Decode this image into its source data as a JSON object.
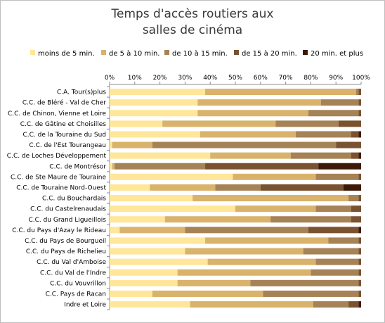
{
  "chart_data": {
    "type": "bar",
    "orientation": "horizontal",
    "stacked": true,
    "percent": true,
    "title": "Temps d'accès routiers aux salles de cinéma",
    "title_lines": [
      "Temps d'accès routiers aux",
      "salles de cinéma"
    ],
    "xlabel": "",
    "ylabel": "",
    "x_axis_position": "top",
    "xlim": [
      0,
      100
    ],
    "x_ticks": [
      "0%",
      "10%",
      "20%",
      "30%",
      "40%",
      "50%",
      "60%",
      "70%",
      "80%",
      "90%",
      "100%"
    ],
    "grid": false,
    "legend_position": "top",
    "categories": [
      "C.A. Tour(s)plus",
      "C.C. de Bléré - Val de Cher",
      "C.C. de Chinon, Vienne et Loire",
      "C.C. de Gâtine et Choisilles",
      "C.C. de la Touraine du Sud",
      "C.C. de l'Est Tourangeau",
      "C.C. de Loches Développement",
      "C.C. de Montrésor",
      "C.C. de Ste Maure de Touraine",
      "C.C. de Touraine Nord-Ouest",
      "C.C. du Bouchardais",
      "C.C. du Castelrenaudais",
      "C.C. du Grand Ligueillois",
      "C.C. du Pays d'Azay le Rideau",
      "C.C. du Pays de Bourgueil",
      "C.C. du Pays de Richelieu",
      "C.C. du Val d'Amboise",
      "C.C. du Val de l'Indre",
      "C.C. du Vouvrillon",
      "C.C. Pays de Racan",
      "Indre et Loire"
    ],
    "series": [
      {
        "name": "moins de 5 min.",
        "color": "#ffe699",
        "values": [
          38,
          35,
          35,
          21,
          36,
          1,
          40,
          1,
          49,
          16,
          33,
          50,
          22,
          4,
          38,
          30,
          39,
          27,
          27,
          17,
          32
        ]
      },
      {
        "name": "de 5 à 10 min.",
        "color": "#d9b26b",
        "values": [
          60,
          49,
          44,
          45,
          38,
          16,
          32,
          1,
          33,
          26,
          62,
          32,
          42,
          26,
          49,
          47,
          43,
          53,
          29,
          44,
          49
        ]
      },
      {
        "name": "de 10 à 15 min.",
        "color": "#a68257",
        "values": [
          1,
          15,
          20,
          25,
          22,
          73,
          24,
          36,
          17,
          18,
          4,
          14,
          32,
          49,
          12,
          22,
          17,
          19,
          43,
          38,
          14
        ]
      },
      {
        "name": "de 15 à 20 min.",
        "color": "#7a5230",
        "values": [
          1,
          1,
          1,
          9,
          3,
          10,
          3,
          45,
          1,
          33,
          1,
          4,
          4,
          20,
          1,
          1,
          1,
          1,
          1,
          1,
          4
        ]
      },
      {
        "name": "20 min. et plus",
        "color": "#3d1a08",
        "values": [
          0,
          0,
          0,
          0,
          1,
          0,
          1,
          17,
          0,
          7,
          0,
          0,
          0,
          1,
          0,
          0,
          0,
          0,
          0,
          0,
          1
        ]
      }
    ]
  }
}
